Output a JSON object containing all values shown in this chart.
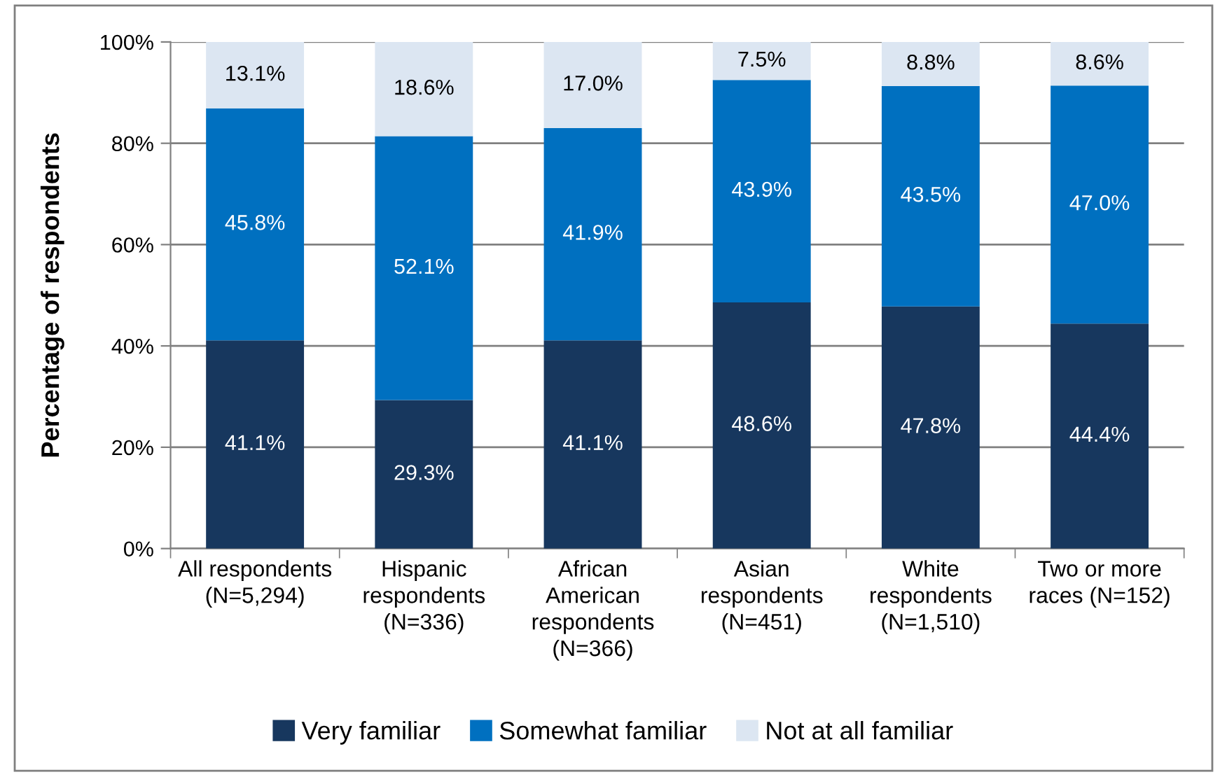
{
  "chart_data": {
    "type": "bar",
    "stacked": true,
    "ylabel": "Percentage of respondents",
    "categories": [
      "All respondents\n(N=5,294)",
      "Hispanic\nrespondents\n(N=336)",
      "African\nAmerican\nrespondents\n(N=366)",
      "Asian\nrespondents\n(N=451)",
      "White\nrespondents\n(N=1,510)",
      "Two or more\nraces (N=152)"
    ],
    "series": [
      {
        "name": "Very familiar",
        "color": "#17375e",
        "values": [
          41.1,
          29.3,
          41.1,
          48.6,
          47.8,
          44.4
        ],
        "value_labels": [
          "41.1%",
          "29.3%",
          "41.1%",
          "48.6%",
          "47.8%",
          "44.4%"
        ]
      },
      {
        "name": "Somewhat familiar",
        "color": "#0070c0",
        "values": [
          45.8,
          52.1,
          41.9,
          43.9,
          43.5,
          47.0
        ],
        "value_labels": [
          "45.8%",
          "52.1%",
          "41.9%",
          "43.9%",
          "43.5%",
          "47.0%"
        ]
      },
      {
        "name": "Not at all familiar",
        "color": "#dce6f2",
        "values": [
          13.1,
          18.6,
          17.0,
          7.5,
          8.8,
          8.6
        ],
        "value_labels": [
          "13.1%",
          "18.6%",
          "17.0%",
          "7.5%",
          "8.8%",
          "8.6%"
        ]
      }
    ],
    "ylim": [
      0,
      100
    ],
    "yticks": [
      {
        "value": 0,
        "label": "0%"
      },
      {
        "value": 20,
        "label": "20%"
      },
      {
        "value": 40,
        "label": "40%"
      },
      {
        "value": 60,
        "label": "60%"
      },
      {
        "value": 80,
        "label": "80%"
      },
      {
        "value": 100,
        "label": "100%"
      }
    ],
    "grid": "y",
    "legend": "bottom"
  }
}
